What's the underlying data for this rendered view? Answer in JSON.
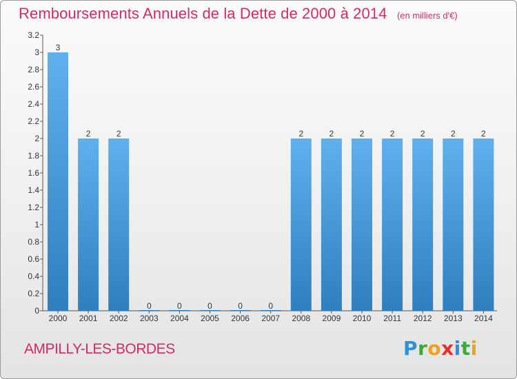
{
  "title": "Remboursements Annuels de la Dette de 2000 à 2014",
  "subtitle": "(en milliers d'€)",
  "commune": "AMPILLY-LES-BORDES",
  "logo": {
    "letters": [
      "P",
      "r",
      "o",
      "x",
      "i",
      "t",
      "i"
    ],
    "alt": "Proxiti"
  },
  "colors": {
    "title": "#d62767",
    "bar_light": "#5fb0ec",
    "bar_dark": "#2f7fc0",
    "axis": "#555555",
    "logo_blue": "#2f8fd8",
    "logo_green": "#3ea83b",
    "logo_orange": "#f0a020",
    "logo_red": "#e3322b"
  },
  "chart_data": {
    "type": "bar",
    "categories": [
      "2000",
      "2001",
      "2002",
      "2003",
      "2004",
      "2005",
      "2006",
      "2007",
      "2008",
      "2009",
      "2010",
      "2011",
      "2012",
      "2013",
      "2014"
    ],
    "values": [
      3,
      2,
      2,
      0,
      0,
      0,
      0,
      0,
      2,
      2,
      2,
      2,
      2,
      2,
      2
    ],
    "value_labels": [
      "3",
      "2",
      "2",
      "0",
      "0",
      "0",
      "0",
      "0",
      "2",
      "2",
      "2",
      "2",
      "2",
      "2",
      "2"
    ],
    "title": "Remboursements Annuels de la Dette de 2000 à 2014",
    "subtitle": "(en milliers d'€)",
    "xlabel": "",
    "ylabel": "",
    "ylim": [
      0,
      3.2
    ],
    "yticks": [
      0,
      0.2,
      0.4,
      0.6,
      0.8,
      1,
      1.2,
      1.4,
      1.6,
      1.8,
      2,
      2.2,
      2.4,
      2.6,
      2.8,
      3,
      3.2
    ],
    "ytick_labels": [
      "0",
      "0.2",
      "0.4",
      "0.6",
      "0.8",
      "1",
      "1.2",
      "1.4",
      "1.6",
      "1.8",
      "2",
      "2.2",
      "2.4",
      "2.6",
      "2.8",
      "3",
      "3.2"
    ],
    "grid": false,
    "legend": "none"
  }
}
